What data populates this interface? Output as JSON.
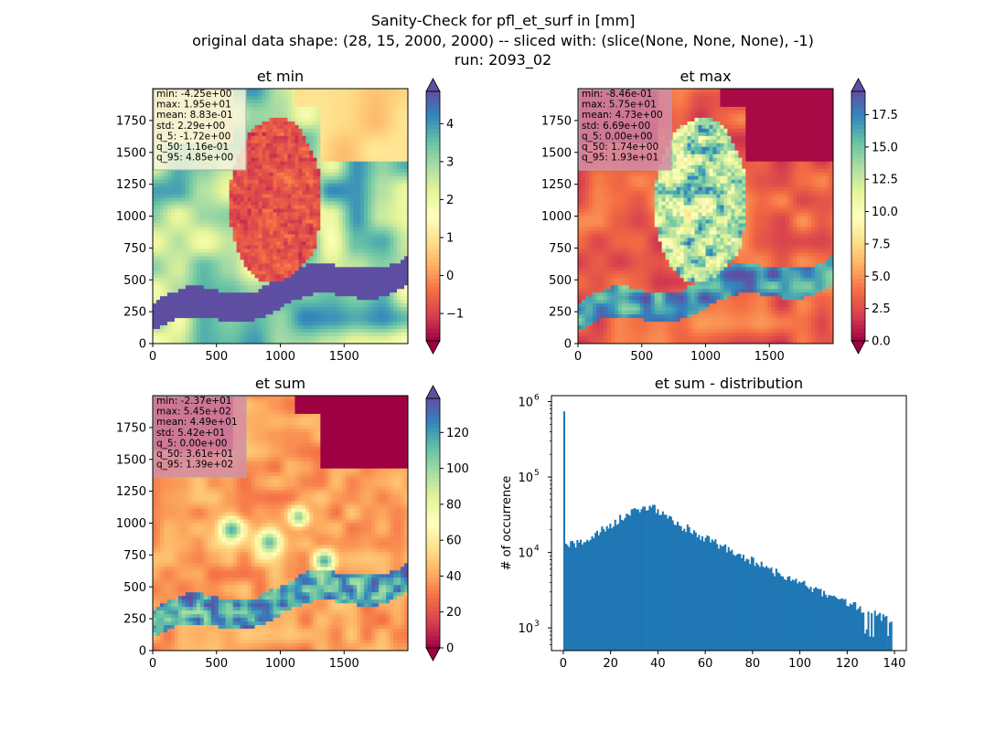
{
  "suptitle": {
    "line1": "Sanity-Check for pfl_et_surf in [mm]",
    "line2": "original data shape: (28, 15, 2000, 2000) -- sliced with: (slice(None, None, None), -1)",
    "line3": "run: 2093_02"
  },
  "colors": {
    "spectral": [
      "#9e0142",
      "#d53e4f",
      "#f46d43",
      "#fdae61",
      "#fee08b",
      "#ffffbf",
      "#e6f598",
      "#abdda4",
      "#66c2a5",
      "#3288bd",
      "#5e4fa2"
    ],
    "hist_bar": "#1f77b4"
  },
  "chart_data": [
    {
      "type": "heatmap",
      "title": "et min",
      "xticks": [
        "0",
        "500",
        "1000",
        "1500"
      ],
      "yticks": [
        "0",
        "250",
        "500",
        "750",
        "1000",
        "1250",
        "1500",
        "1750"
      ],
      "xlim": [
        0,
        2000
      ],
      "ylim": [
        0,
        2000
      ],
      "colorbar": {
        "ticks": [
          "4",
          "3",
          "2",
          "1",
          "0",
          "−1"
        ],
        "tick_values": [
          4,
          3,
          2,
          1,
          0,
          -1
        ],
        "range": [
          -1.72,
          4.85
        ]
      },
      "stats": [
        "min: -4.25e+00",
        "max: 1.95e+01",
        "mean: 8.83e-01",
        "std: 2.29e+00",
        "q_5: -1.72e+00",
        "q_50: 1.16e-01",
        "q_95: 4.85e+00"
      ],
      "field": "et_min"
    },
    {
      "type": "heatmap",
      "title": "et max",
      "xticks": [
        "0",
        "500",
        "1000",
        "1500"
      ],
      "yticks": [
        "0",
        "250",
        "500",
        "750",
        "1000",
        "1250",
        "1500",
        "1750"
      ],
      "xlim": [
        0,
        2000
      ],
      "ylim": [
        0,
        2000
      ],
      "colorbar": {
        "ticks": [
          "17.5",
          "15.0",
          "12.5",
          "10.0",
          "7.5",
          "5.0",
          "2.5",
          "0.0"
        ],
        "tick_values": [
          17.5,
          15.0,
          12.5,
          10.0,
          7.5,
          5.0,
          2.5,
          0.0
        ],
        "range": [
          0.0,
          19.3
        ]
      },
      "stats": [
        "min: -8.46e-01",
        "max: 5.75e+01",
        "mean: 4.73e+00",
        "std: 6.69e+00",
        "q_5: 0.00e+00",
        "q_50: 1.74e+00",
        "q_95: 1.93e+01"
      ],
      "field": "et_max"
    },
    {
      "type": "heatmap",
      "title": "et sum",
      "xticks": [
        "0",
        "500",
        "1000",
        "1500"
      ],
      "yticks": [
        "0",
        "250",
        "500",
        "750",
        "1000",
        "1250",
        "1500",
        "1750"
      ],
      "xlim": [
        0,
        2000
      ],
      "ylim": [
        0,
        2000
      ],
      "colorbar": {
        "ticks": [
          "120",
          "100",
          "80",
          "60",
          "40",
          "20",
          "0"
        ],
        "tick_values": [
          120,
          100,
          80,
          60,
          40,
          20,
          0
        ],
        "range": [
          0,
          139
        ]
      },
      "stats": [
        "min: -2.37e+01",
        "max: 5.45e+02",
        "mean: 4.49e+01",
        "std: 5.42e+01",
        "q_5: 0.00e+00",
        "q_50: 3.61e+01",
        "q_95: 1.39e+02"
      ],
      "field": "et_sum"
    },
    {
      "type": "bar",
      "title": "et sum - distribution",
      "ylabel": "# of occurrence",
      "yscale": "log",
      "xlim": [
        -5,
        145
      ],
      "ylim": [
        500,
        1200000
      ],
      "xticks": [
        "0",
        "20",
        "40",
        "60",
        "80",
        "100",
        "120",
        "140"
      ],
      "xtick_values": [
        0,
        20,
        40,
        60,
        80,
        100,
        120,
        140
      ],
      "yticks": [
        "10",
        "10",
        "10",
        "10"
      ],
      "ytick_exps": [
        "3",
        "4",
        "5",
        "6"
      ],
      "ytick_values": [
        1000,
        10000,
        100000,
        1000000
      ],
      "bin_range": [
        0,
        139
      ],
      "bin_count": 200,
      "spike": {
        "x": 0,
        "value": 800000
      },
      "shape": {
        "start_value": 12000,
        "peak_x": 38,
        "peak_value": 40000,
        "end_value": 1200
      }
    }
  ]
}
